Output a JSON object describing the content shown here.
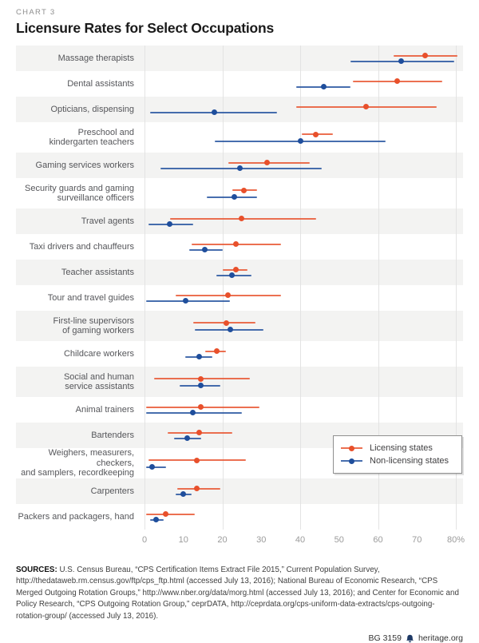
{
  "header": {
    "kicker": "CHART 3",
    "title": "Licensure Rates for Select Occupations"
  },
  "colors": {
    "licensing": "#e8502b",
    "non_licensing": "#1f4e9c",
    "band": "#f3f3f2",
    "gridline": "#e3e3e3"
  },
  "axis": {
    "min": 0,
    "max": 80,
    "gridline_values": [
      0,
      20,
      40,
      60,
      80
    ],
    "ticks": [
      {
        "value": 0,
        "label": "0"
      },
      {
        "value": 10,
        "label": "10"
      },
      {
        "value": 20,
        "label": "20"
      },
      {
        "value": 30,
        "label": "30"
      },
      {
        "value": 40,
        "label": "40"
      },
      {
        "value": 50,
        "label": "50"
      },
      {
        "value": 60,
        "label": "60"
      },
      {
        "value": 70,
        "label": "70"
      },
      {
        "value": 80,
        "label": "80%"
      }
    ]
  },
  "legend": {
    "items": [
      {
        "key": "licensing",
        "label": "Licensing states"
      },
      {
        "key": "non_licensing",
        "label": "Non-licensing states"
      }
    ]
  },
  "chart_data": {
    "type": "scatter",
    "subtype": "dot-plot-with-intervals",
    "unit": "percent licensed",
    "xlim": [
      0,
      80
    ],
    "series_names": [
      "Licensing states",
      "Non-licensing states"
    ],
    "occupations": [
      {
        "label": "Massage therapists",
        "two_line": false,
        "licensing": {
          "value": 72,
          "lo": 64,
          "hi": 80.5
        },
        "non_licensing": {
          "value": 66,
          "lo": 53,
          "hi": 79.5
        }
      },
      {
        "label": "Dental assistants",
        "two_line": false,
        "licensing": {
          "value": 65,
          "lo": 53.5,
          "hi": 76.5
        },
        "non_licensing": {
          "value": 46,
          "lo": 39,
          "hi": 53
        }
      },
      {
        "label": "Opticians, dispensing",
        "two_line": false,
        "licensing": {
          "value": 57,
          "lo": 39,
          "hi": 75
        },
        "non_licensing": {
          "value": 18,
          "lo": 1.5,
          "hi": 34
        }
      },
      {
        "label": "Preschool and\nkindergarten teachers",
        "two_line": true,
        "licensing": {
          "value": 44,
          "lo": 40.5,
          "hi": 48.5
        },
        "non_licensing": {
          "value": 40,
          "lo": 18,
          "hi": 62
        }
      },
      {
        "label": "Gaming services workers",
        "two_line": false,
        "licensing": {
          "value": 31.5,
          "lo": 21.5,
          "hi": 42.5
        },
        "non_licensing": {
          "value": 24.5,
          "lo": 4,
          "hi": 45.5
        }
      },
      {
        "label": "Security guards and gaming\nsurveillance officers",
        "two_line": true,
        "licensing": {
          "value": 25.5,
          "lo": 22.5,
          "hi": 29
        },
        "non_licensing": {
          "value": 23,
          "lo": 16,
          "hi": 29
        }
      },
      {
        "label": "Travel agents",
        "two_line": false,
        "licensing": {
          "value": 25,
          "lo": 6.5,
          "hi": 44
        },
        "non_licensing": {
          "value": 6.5,
          "lo": 1,
          "hi": 12.5
        }
      },
      {
        "label": "Taxi drivers and chauffeurs",
        "two_line": false,
        "licensing": {
          "value": 23.5,
          "lo": 12,
          "hi": 35
        },
        "non_licensing": {
          "value": 15.5,
          "lo": 11.5,
          "hi": 20
        }
      },
      {
        "label": "Teacher assistants",
        "two_line": false,
        "licensing": {
          "value": 23.5,
          "lo": 20,
          "hi": 26.5
        },
        "non_licensing": {
          "value": 22.5,
          "lo": 18.5,
          "hi": 27.5
        }
      },
      {
        "label": "Tour and travel guides",
        "two_line": false,
        "licensing": {
          "value": 21.5,
          "lo": 8,
          "hi": 35
        },
        "non_licensing": {
          "value": 10.5,
          "lo": 0.5,
          "hi": 22
        }
      },
      {
        "label": "First-line supervisors\nof gaming workers",
        "two_line": true,
        "licensing": {
          "value": 21,
          "lo": 12.5,
          "hi": 28.5
        },
        "non_licensing": {
          "value": 22,
          "lo": 13,
          "hi": 30.5
        }
      },
      {
        "label": "Childcare workers",
        "two_line": false,
        "licensing": {
          "value": 18.5,
          "lo": 15.5,
          "hi": 21
        },
        "non_licensing": {
          "value": 14,
          "lo": 10.5,
          "hi": 17.5
        }
      },
      {
        "label": "Social and human\nservice assistants",
        "two_line": true,
        "licensing": {
          "value": 14.5,
          "lo": 2.5,
          "hi": 27
        },
        "non_licensing": {
          "value": 14.5,
          "lo": 9,
          "hi": 19.5
        }
      },
      {
        "label": "Animal trainers",
        "two_line": false,
        "licensing": {
          "value": 14.5,
          "lo": 0.5,
          "hi": 29.5
        },
        "non_licensing": {
          "value": 12.5,
          "lo": 0.5,
          "hi": 25
        }
      },
      {
        "label": "Bartenders",
        "two_line": false,
        "licensing": {
          "value": 14,
          "lo": 6,
          "hi": 22.5
        },
        "non_licensing": {
          "value": 11,
          "lo": 7.5,
          "hi": 14.5
        }
      },
      {
        "label": "Weighers, measurers, checkers,\nand samplers, recordkeeping",
        "two_line": true,
        "licensing": {
          "value": 13.5,
          "lo": 1,
          "hi": 26
        },
        "non_licensing": {
          "value": 2,
          "lo": 0.5,
          "hi": 5.5
        }
      },
      {
        "label": "Carpenters",
        "two_line": false,
        "licensing": {
          "value": 13.5,
          "lo": 8.5,
          "hi": 19.5
        },
        "non_licensing": {
          "value": 10,
          "lo": 8,
          "hi": 12
        }
      },
      {
        "label": "Packers and packagers, hand",
        "two_line": false,
        "licensing": {
          "value": 5.5,
          "lo": 0.5,
          "hi": 13
        },
        "non_licensing": {
          "value": 3,
          "lo": 1.5,
          "hi": 5
        }
      }
    ]
  },
  "sources": {
    "prefix": "SOURCES:",
    "text": " U.S. Census Bureau, “CPS Certification Items Extract File 2015,” Current Population Survey, http://thedataweb.rm.census.gov/ftp/cps_ftp.html (accessed July 13, 2016); National Bureau of Economic Research, “CPS Merged Outgoing Rotation Groups,” http://www.nber.org/data/morg.html (accessed July 13, 2016); and Center for Economic and Policy Research, “CPS Outgoing Rotation Group,” ceprDATA, http://ceprdata.org/cps-uniform-data-extracts/cps-outgoing-rotation-group/ (accessed July 13, 2016)."
  },
  "footer": {
    "report_id": "BG 3159",
    "site": "heritage.org"
  }
}
